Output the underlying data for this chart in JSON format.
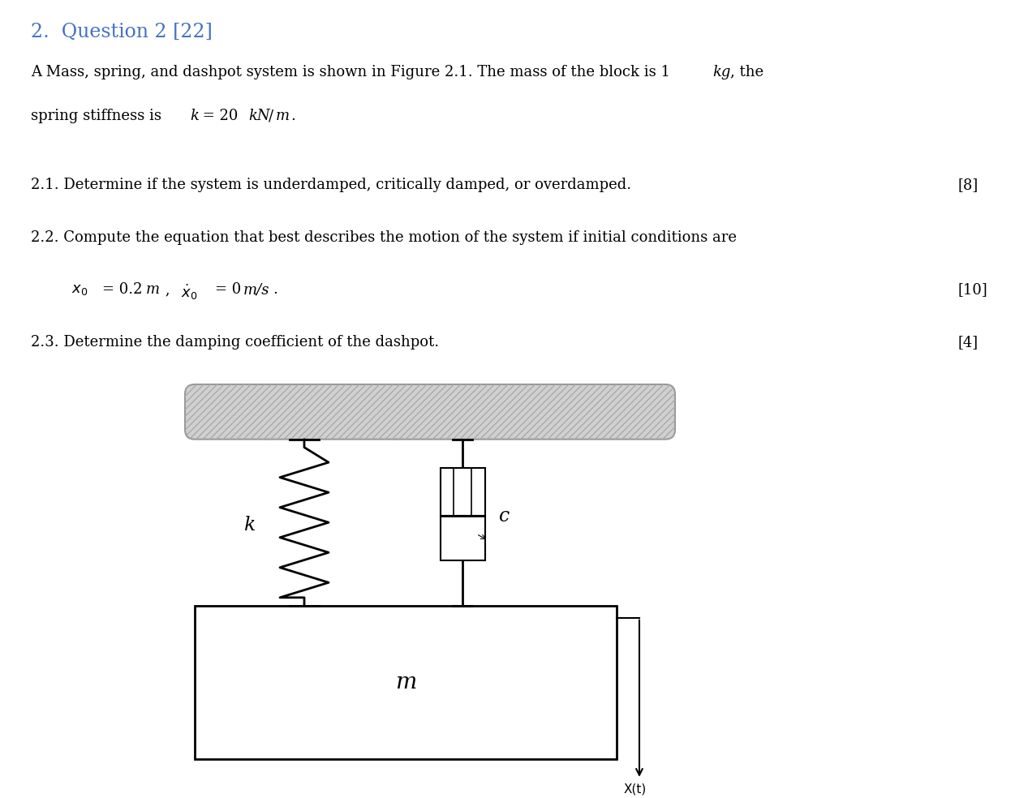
{
  "title": "2.  Question 2 [22]",
  "title_color": "#4472c4",
  "title_fontsize": 16,
  "body_color": "#000000",
  "bg_color": "#ffffff",
  "q21": "2.1. Determine if the system is underdamped, critically damped, or overdamped.",
  "q21_mark": "[8]",
  "q22": "2.2. Compute the equation that best describes the motion of the system if initial conditions are",
  "q22_mark": "[10]",
  "q23": "2.3. Determine the damping coefficient of the dashpot.",
  "q23_mark": "[4]",
  "label_k": "k",
  "label_c": "c",
  "label_m": "m",
  "label_xt": "X(t)"
}
